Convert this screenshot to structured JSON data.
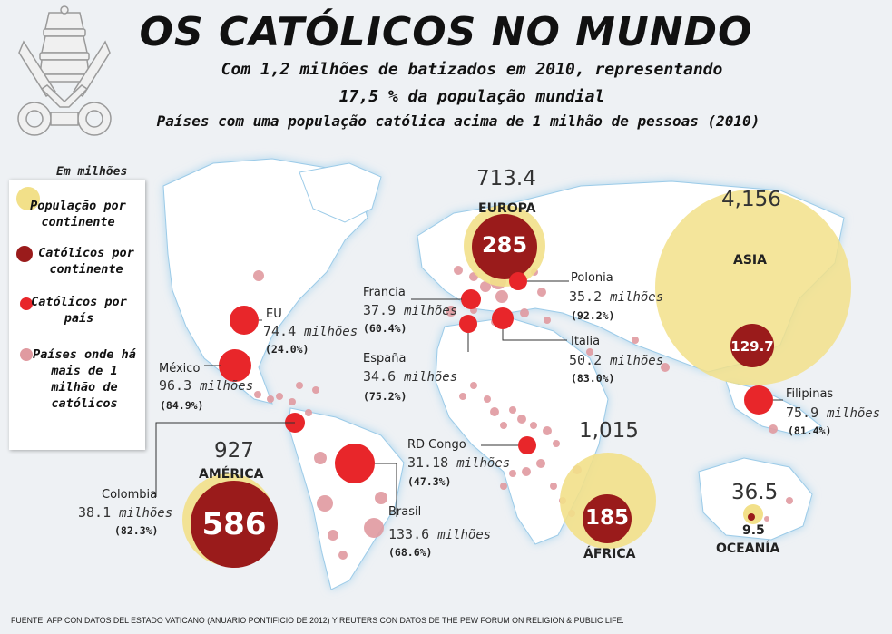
{
  "title": "OS CATÓLICOS NO MUNDO",
  "subtitle_line1": "Com 1,2 milhões de batizados em 2010, representando",
  "subtitle_line2": "17,5 % da população mundial",
  "subtitle_line3": "Países com uma população católica acima de 1 milhão de pessoas (2010)",
  "unit_label": "Em milhões",
  "legend": [
    {
      "label": "População por continente",
      "color": "#f2e089"
    },
    {
      "label": "Católicos por continente",
      "color": "#9a1b1b"
    },
    {
      "label": "Católicos por país",
      "color": "#e8262a"
    },
    {
      "label": "Países onde há mais de 1 milhão de católicos",
      "color": "#e09aa0"
    }
  ],
  "continents": [
    {
      "name": "EUROPA",
      "population": "713.4",
      "catholics": "285"
    },
    {
      "name": "ASIA",
      "population": "4,156",
      "catholics": "129.7"
    },
    {
      "name": "AMÉRICA",
      "population": "927",
      "catholics": "586"
    },
    {
      "name": "ÁFRICA",
      "population": "1,015",
      "catholics": "185"
    },
    {
      "name": "OCEANÍA",
      "population": "36.5",
      "catholics": "9.5"
    }
  ],
  "countries": [
    {
      "name": "EU",
      "value": "74.4",
      "unit": "milhões",
      "pct": "(24.0%)"
    },
    {
      "name": "México",
      "value": "96.3",
      "unit": "milhões",
      "pct": "(84.9%)"
    },
    {
      "name": "Colombia",
      "value": "38.1",
      "unit": "milhões",
      "pct": "(82.3%)"
    },
    {
      "name": "Brasil",
      "value": "133.6",
      "unit": "milhões",
      "pct": "(68.6%)"
    },
    {
      "name": "Francia",
      "value": "37.9",
      "unit": "milhões",
      "pct": "(60.4%)"
    },
    {
      "name": "España",
      "value": "34.6",
      "unit": "milhões",
      "pct": "(75.2%)"
    },
    {
      "name": "Polonia",
      "value": "35.2",
      "unit": "milhões",
      "pct": "(92.2%)"
    },
    {
      "name": "Italia",
      "value": "50.2",
      "unit": "milhões",
      "pct": "(83.0%)"
    },
    {
      "name": "RD Congo",
      "value": "31.18",
      "unit": "milhões",
      "pct": "(47.3%)"
    },
    {
      "name": "Filipinas",
      "value": "75.9",
      "unit": "milhões",
      "pct": "(81.4%)"
    }
  ],
  "colors": {
    "ocean": "#eef1f4",
    "land": "#ffffff",
    "coast_glow": "#a9d4ee",
    "population": "#f2e089",
    "catholics_continent": "#9a1b1b",
    "catholics_country": "#e8262a",
    "over_million": "#e09aa0"
  },
  "source": "FUENTE: AFP CON DATOS DEL ESTADO VATICANO (ANUARIO PONTIFICIO DE 2012) Y REUTERS CON DATOS DE THE PEW FORUM ON RELIGION & PUBLIC LIFE."
}
